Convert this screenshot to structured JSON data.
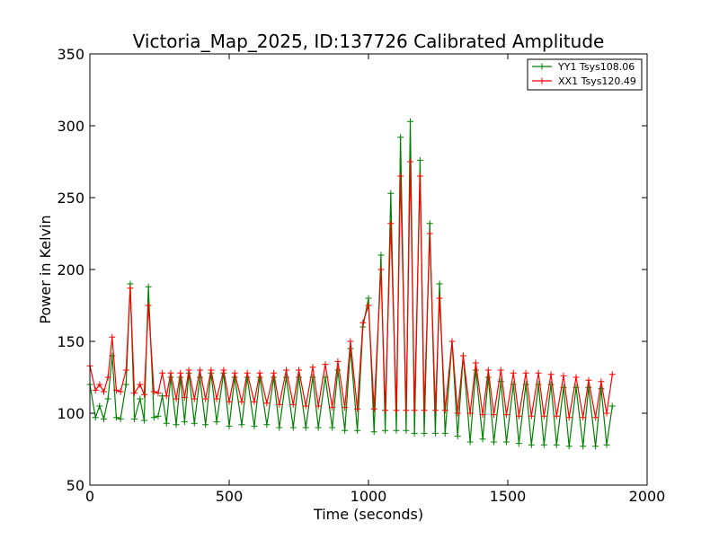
{
  "chart_data": {
    "type": "line",
    "title": "Victoria_Map_2025, ID:137726 Calibrated Amplitude",
    "xlabel": "Time (seconds)",
    "ylabel": "Power in Kelvin",
    "xlim": [
      0,
      2000
    ],
    "ylim": [
      50,
      350
    ],
    "xticks": [
      "0",
      "500",
      "1000",
      "1500",
      "2000"
    ],
    "yticks": [
      "50",
      "100",
      "150",
      "200",
      "250",
      "300",
      "350"
    ],
    "grid": false,
    "legend_position": "top-right",
    "marker": "+",
    "series": [
      {
        "name": "YY1 Tsys108.06",
        "color": "#008000",
        "x": [
          0,
          20,
          35,
          50,
          65,
          80,
          95,
          110,
          130,
          145,
          160,
          180,
          195,
          210,
          230,
          245,
          260,
          275,
          290,
          310,
          325,
          340,
          355,
          375,
          395,
          415,
          435,
          455,
          480,
          500,
          520,
          545,
          565,
          590,
          610,
          635,
          660,
          680,
          705,
          730,
          750,
          775,
          800,
          820,
          845,
          870,
          890,
          915,
          935,
          960,
          980,
          1000,
          1020,
          1045,
          1060,
          1080,
          1100,
          1115,
          1135,
          1150,
          1165,
          1185,
          1200,
          1220,
          1240,
          1255,
          1275,
          1300,
          1320,
          1340,
          1365,
          1385,
          1410,
          1430,
          1450,
          1475,
          1495,
          1520,
          1540,
          1565,
          1585,
          1610,
          1630,
          1655,
          1675,
          1700,
          1720,
          1745,
          1770,
          1790,
          1815,
          1835,
          1855,
          1875
        ],
        "values": [
          120,
          97,
          105,
          96,
          110,
          140,
          97,
          96,
          120,
          190,
          96,
          110,
          95,
          188,
          97,
          98,
          112,
          93,
          125,
          92,
          125,
          94,
          128,
          93,
          125,
          92,
          128,
          94,
          128,
          91,
          125,
          92,
          125,
          91,
          125,
          92,
          125,
          90,
          125,
          90,
          125,
          90,
          125,
          90,
          125,
          90,
          130,
          88,
          145,
          88,
          160,
          180,
          87,
          210,
          88,
          253,
          88,
          292,
          88,
          303,
          86,
          276,
          86,
          232,
          86,
          190,
          86,
          150,
          84,
          140,
          80,
          130,
          82,
          125,
          80,
          122,
          80,
          120,
          79,
          120,
          78,
          120,
          78,
          120,
          78,
          118,
          77,
          118,
          77,
          118,
          77,
          117,
          78,
          105
        ]
      },
      {
        "name": "XX1 Tsys120.49",
        "color": "#ff0000",
        "x": [
          0,
          20,
          35,
          50,
          65,
          80,
          95,
          110,
          130,
          145,
          160,
          180,
          195,
          210,
          230,
          245,
          260,
          275,
          290,
          310,
          325,
          340,
          355,
          375,
          395,
          415,
          435,
          455,
          480,
          500,
          520,
          545,
          565,
          590,
          610,
          635,
          660,
          680,
          705,
          730,
          750,
          775,
          800,
          820,
          845,
          870,
          890,
          915,
          935,
          960,
          980,
          1000,
          1020,
          1045,
          1060,
          1080,
          1100,
          1115,
          1135,
          1150,
          1165,
          1185,
          1200,
          1220,
          1240,
          1255,
          1275,
          1300,
          1320,
          1340,
          1365,
          1385,
          1410,
          1430,
          1450,
          1475,
          1495,
          1520,
          1540,
          1565,
          1585,
          1610,
          1630,
          1655,
          1675,
          1700,
          1720,
          1745,
          1770,
          1790,
          1815,
          1835,
          1855,
          1875
        ],
        "values": [
          133,
          116,
          120,
          115,
          125,
          153,
          116,
          115,
          130,
          187,
          114,
          120,
          113,
          175,
          115,
          114,
          128,
          112,
          128,
          110,
          128,
          111,
          130,
          110,
          130,
          110,
          130,
          110,
          130,
          108,
          128,
          108,
          128,
          108,
          128,
          107,
          128,
          106,
          130,
          106,
          130,
          105,
          132,
          105,
          134,
          104,
          136,
          104,
          150,
          103,
          163,
          175,
          103,
          200,
          102,
          232,
          102,
          265,
          102,
          275,
          102,
          265,
          102,
          225,
          102,
          180,
          102,
          150,
          100,
          140,
          100,
          135,
          99,
          130,
          99,
          130,
          99,
          128,
          98,
          128,
          98,
          128,
          98,
          127,
          98,
          126,
          97,
          125,
          97,
          123,
          97,
          122,
          100,
          127
        ]
      }
    ]
  }
}
